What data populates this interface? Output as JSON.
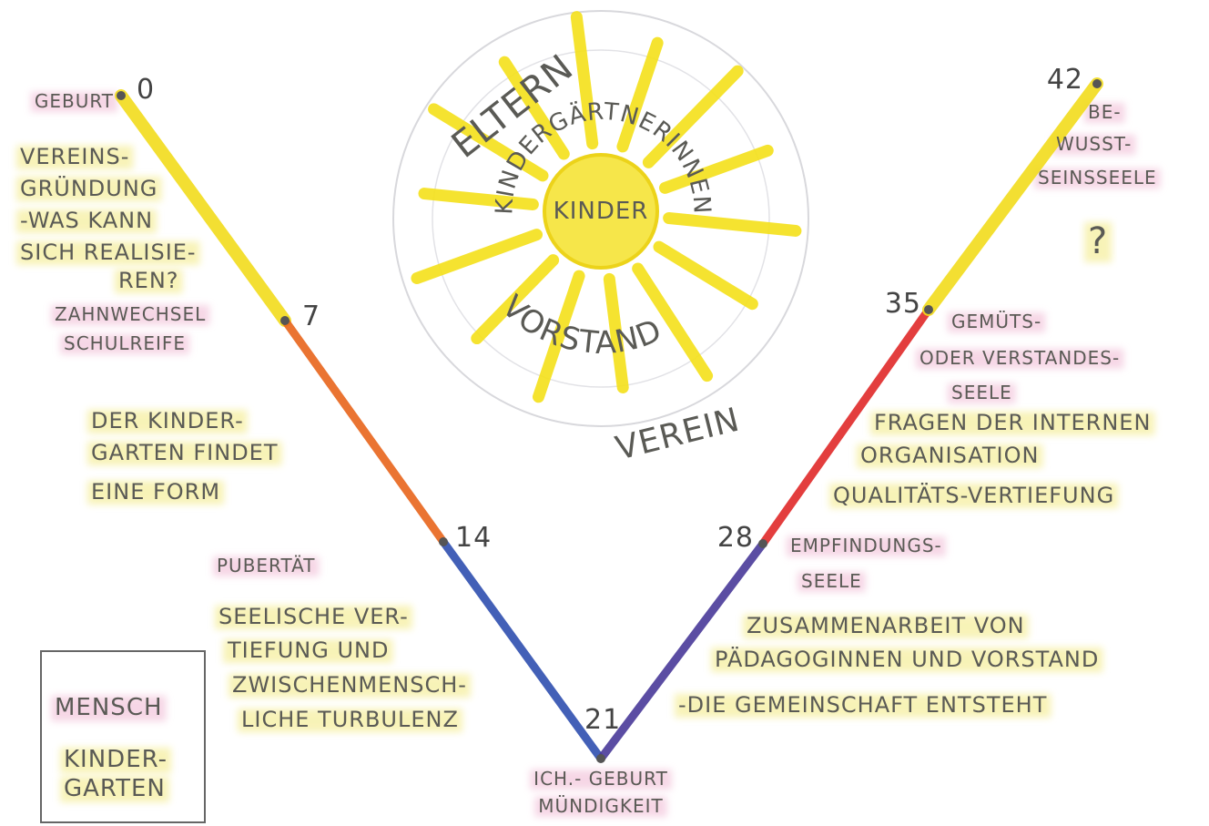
{
  "milestones": [
    {
      "age": 0,
      "label": [
        "GEBURT"
      ]
    },
    {
      "age": 7,
      "label": [
        "ZAHNWECHSEL",
        "SCHULREIFE"
      ]
    },
    {
      "age": 14,
      "label": [
        "PUBERTÄT"
      ]
    },
    {
      "age": 21,
      "label": [
        "ICH.- GEBURT",
        "MÜNDIGKEIT"
      ]
    },
    {
      "age": 28,
      "label": [
        "EMPFINDUNGS-",
        "SEELE"
      ]
    },
    {
      "age": 35,
      "label": [
        "GEMÜTS-",
        "ODER VERSTANDES-",
        "SEELE"
      ]
    },
    {
      "age": 42,
      "label": [
        "BE-",
        "WUSST-",
        "SEINSSEELE"
      ]
    }
  ],
  "phases": [
    {
      "color": "#f2dc1c",
      "lines": [
        "VEREINS-",
        "GRÜNDUNG",
        "-WAS KANN",
        "SICH REALISIE-",
        "REN?"
      ]
    },
    {
      "color": "#e8661c",
      "lines": [
        "DER KINDER-",
        "GARTEN FINDET",
        "EINE FORM"
      ]
    },
    {
      "color": "#2f4fb0",
      "lines": [
        "SEELISCHE VER-",
        "TIEFUNG UND",
        "ZWISCHENMENSCH-",
        "LICHE TURBULENZ"
      ]
    },
    {
      "color": "#4a3a9a",
      "lines": [
        "ZUSAMMENARBEIT VON",
        "PÄDAGOGINNEN UND VORSTAND",
        "-DIE GEMEINSCHAFT ENTSTEHT"
      ]
    },
    {
      "color": "#e02a2a",
      "lines": [
        "FRAGEN DER INTERNEN",
        "ORGANISATION",
        "QUALITÄTS-VERTIEFUNG"
      ]
    },
    {
      "color": "#f2dc1c",
      "lines": [
        "?"
      ]
    }
  ],
  "sun": {
    "center": "KINDER",
    "ring": "KINDERGÄRTNERINNEN",
    "board": "VORSTAND",
    "parents": "ELTERN",
    "association": "VEREIN"
  },
  "legend": {
    "mensch": "MENSCH",
    "kindergarten": [
      "KINDER-",
      "GARTEN"
    ]
  }
}
